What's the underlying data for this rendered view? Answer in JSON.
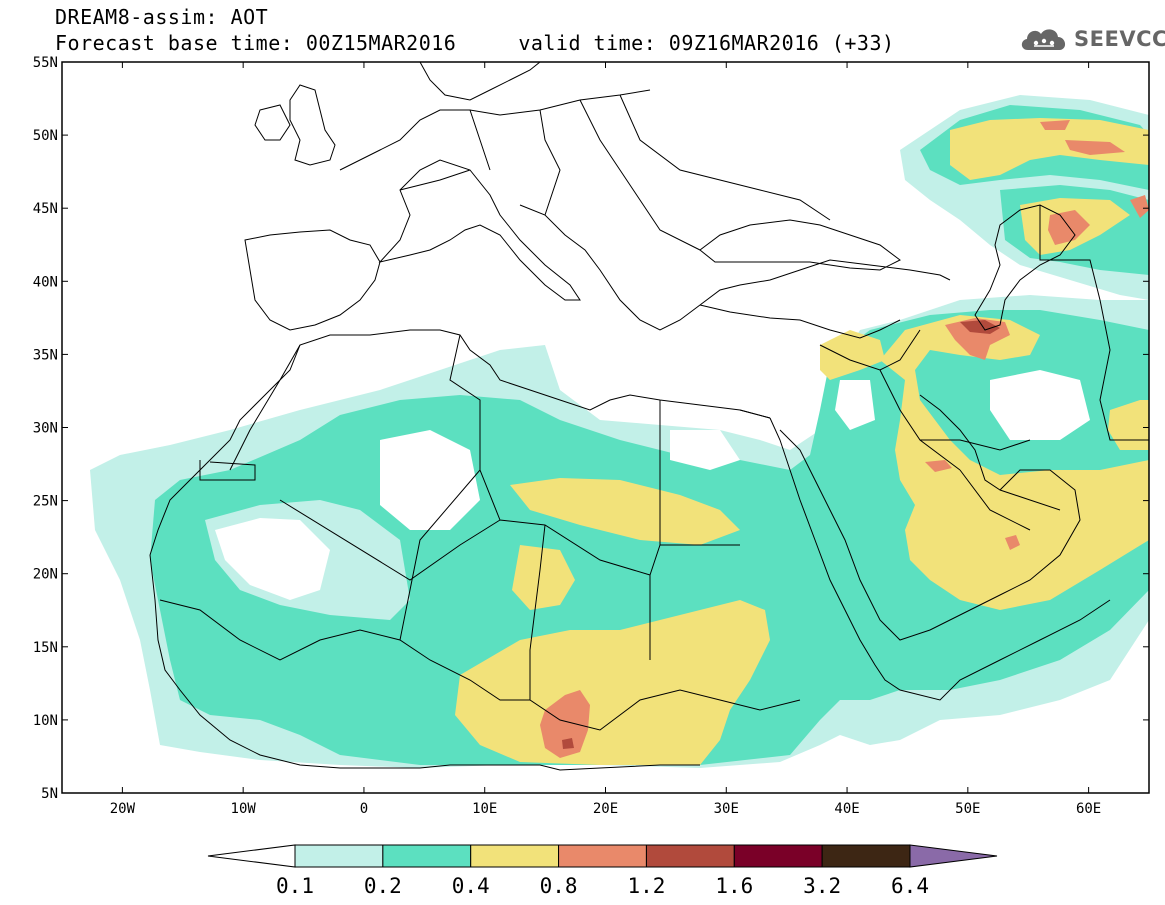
{
  "header": {
    "title": "DREAM8-assim: AOT",
    "base_time": "Forecast base time: 00Z15MAR2016",
    "valid_time": "valid time: 09Z16MAR2016 (+33)"
  },
  "logo": {
    "text": "SEEVCCC",
    "icon": "cloud-icon"
  },
  "map": {
    "extent": {
      "lon": [
        -25,
        65
      ],
      "lat": [
        5,
        55
      ]
    },
    "lat_ticks": [
      {
        "value": 55,
        "label": "55N"
      },
      {
        "value": 50,
        "label": "50N"
      },
      {
        "value": 45,
        "label": "45N"
      },
      {
        "value": 40,
        "label": "40N"
      },
      {
        "value": 35,
        "label": "35N"
      },
      {
        "value": 30,
        "label": "30N"
      },
      {
        "value": 25,
        "label": "25N"
      },
      {
        "value": 20,
        "label": "20N"
      },
      {
        "value": 15,
        "label": "15N"
      },
      {
        "value": 10,
        "label": "10N"
      },
      {
        "value": 5,
        "label": "5N"
      }
    ],
    "lon_ticks": [
      {
        "value": -20,
        "label": "20W"
      },
      {
        "value": -10,
        "label": "10W"
      },
      {
        "value": 0,
        "label": "0"
      },
      {
        "value": 10,
        "label": "10E"
      },
      {
        "value": 20,
        "label": "20E"
      },
      {
        "value": 30,
        "label": "30E"
      },
      {
        "value": 40,
        "label": "40E"
      },
      {
        "value": 50,
        "label": "50E"
      },
      {
        "value": 60,
        "label": "60E"
      }
    ]
  },
  "colorbar": {
    "colors": [
      "#ffffff",
      "#c2f0e8",
      "#5ce0c0",
      "#f2e27a",
      "#e9896a",
      "#b14a3c",
      "#7a0028",
      "#3d2614",
      "#8a6aa8"
    ],
    "labels": [
      "0.1",
      "0.2",
      "0.4",
      "0.8",
      "1.2",
      "1.6",
      "3.2",
      "6.4"
    ]
  },
  "colors": {
    "frame": "#000000",
    "land_border": "#000000",
    "background": "#ffffff"
  }
}
